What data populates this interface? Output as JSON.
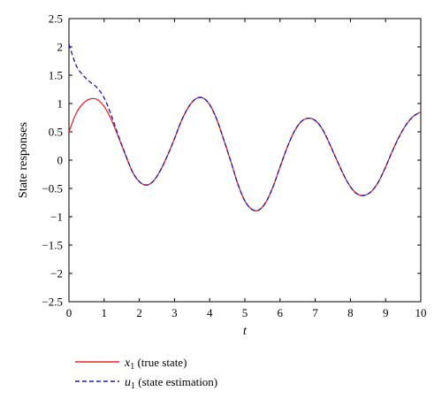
{
  "chart_data": {
    "type": "line",
    "title": "",
    "xlabel": "t",
    "ylabel": "State responses",
    "xlim": [
      0,
      10
    ],
    "ylim": [
      -2.5,
      2.5
    ],
    "xticks": [
      "0",
      "1",
      "2",
      "3",
      "4",
      "5",
      "6",
      "7",
      "8",
      "9",
      "10"
    ],
    "yticks": [
      "2.5",
      "2",
      "1.5",
      "1",
      "0.5",
      "0",
      "−0.5",
      "−1",
      "−1.5",
      "−2",
      "−2.5"
    ],
    "grid": false,
    "legend_position": "bottom-left",
    "x": [
      0,
      0.2,
      0.4,
      0.6,
      0.8,
      1.0,
      1.2,
      1.4,
      1.6,
      1.8,
      2.0,
      2.2,
      2.4,
      2.6,
      2.8,
      3.0,
      3.2,
      3.4,
      3.6,
      3.8,
      4.0,
      4.2,
      4.4,
      4.6,
      4.8,
      5.0,
      5.2,
      5.4,
      5.6,
      5.8,
      6.0,
      6.2,
      6.4,
      6.6,
      6.8,
      7.0,
      7.2,
      7.4,
      7.6,
      7.8,
      8.0,
      8.2,
      8.4,
      8.6,
      8.8,
      9.0,
      9.2,
      9.4,
      9.6,
      9.8,
      10.0
    ],
    "series": [
      {
        "name": "x1 (true state)",
        "color": "#e8262b",
        "dash": "solid",
        "values": [
          0.5,
          0.82,
          1.0,
          1.08,
          1.07,
          0.95,
          0.72,
          0.42,
          0.1,
          -0.2,
          -0.38,
          -0.44,
          -0.37,
          -0.18,
          0.08,
          0.38,
          0.7,
          0.94,
          1.08,
          1.1,
          0.98,
          0.72,
          0.36,
          -0.02,
          -0.42,
          -0.72,
          -0.87,
          -0.88,
          -0.74,
          -0.47,
          -0.12,
          0.22,
          0.5,
          0.68,
          0.74,
          0.7,
          0.55,
          0.3,
          0.02,
          -0.25,
          -0.47,
          -0.6,
          -0.62,
          -0.55,
          -0.38,
          -0.12,
          0.17,
          0.43,
          0.64,
          0.78,
          0.85
        ]
      },
      {
        "name": "u1 (state estimation)",
        "color": "#1a1aa6",
        "dash": "dashed",
        "values": [
          2.05,
          1.68,
          1.5,
          1.38,
          1.28,
          1.1,
          0.8,
          0.44,
          0.11,
          -0.2,
          -0.38,
          -0.44,
          -0.37,
          -0.18,
          0.08,
          0.38,
          0.7,
          0.94,
          1.08,
          1.1,
          0.98,
          0.72,
          0.36,
          -0.02,
          -0.42,
          -0.72,
          -0.87,
          -0.88,
          -0.74,
          -0.47,
          -0.12,
          0.22,
          0.5,
          0.68,
          0.74,
          0.7,
          0.55,
          0.3,
          0.02,
          -0.25,
          -0.47,
          -0.6,
          -0.62,
          -0.55,
          -0.38,
          -0.12,
          0.17,
          0.43,
          0.64,
          0.78,
          0.85
        ]
      }
    ],
    "legend": [
      {
        "symbol": "x",
        "sub": "1",
        "text": " (true state)"
      },
      {
        "symbol": "u",
        "sub": "1",
        "text": " (state estimation)"
      }
    ]
  }
}
